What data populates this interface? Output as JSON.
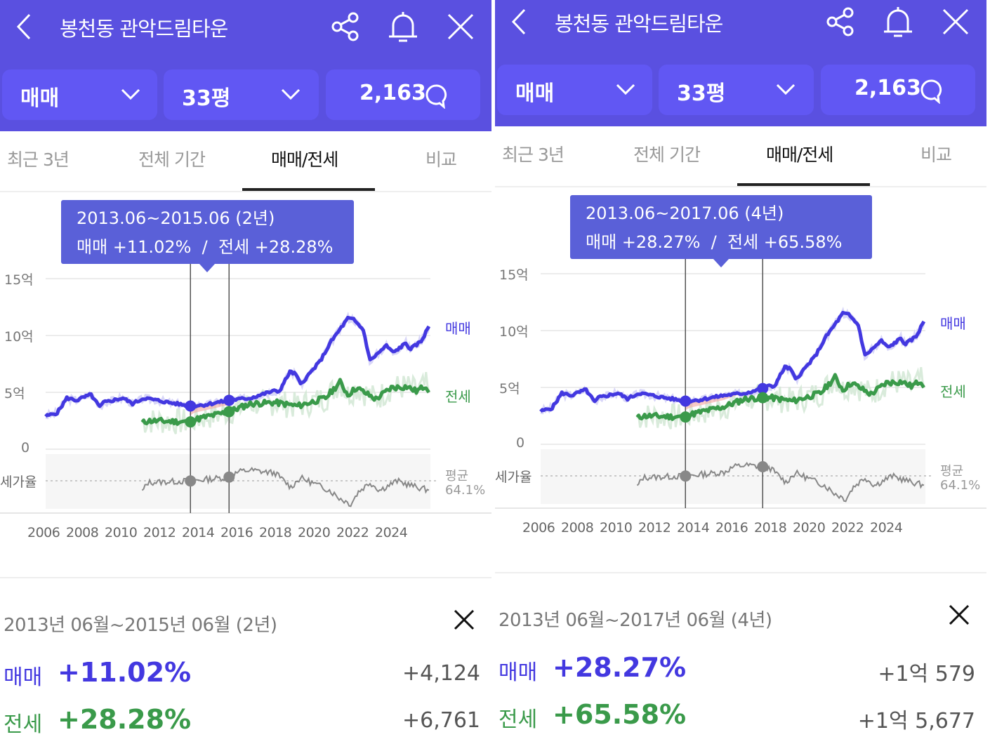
{
  "colors": {
    "header": "#5A50E0",
    "accent": "#4A3FE0",
    "sale": "#4338E0",
    "jeonse": "#3A9A4A",
    "ratio": "#888888",
    "highlight": "#F4A6A0"
  },
  "panels": [
    {
      "header": {
        "title": "봉천동 관악드림타운",
        "back_icon": "chevron-left-icon",
        "share_icon": "share-icon",
        "bell_icon": "bell-icon",
        "close_icon": "close-icon"
      },
      "filters": {
        "type": "매매",
        "size": "33평",
        "comments": "2,163"
      },
      "tabs": [
        "최근 3년",
        "전체 기간",
        "매매/전세",
        "비교"
      ],
      "active_tab": 2,
      "tooltip": {
        "range": "2013.06~2015.06 (2년)",
        "summary": "매매 +11.02%  /  전세 +28.28%"
      },
      "y_ticks": [
        "15억",
        "10억",
        "5억",
        "0"
      ],
      "ratio_label": "세가율",
      "avg_label": "평균",
      "avg_value": "64.1%",
      "series_labels": [
        "매매",
        "전세"
      ],
      "x_ticks": [
        "2006",
        "2008",
        "2010",
        "2012",
        "2014",
        "2016",
        "2018",
        "2020",
        "2022",
        "2024"
      ],
      "summary": {
        "range": "2013년 06월~2015년 06월 (2년)",
        "sale_label": "매매",
        "sale_pct": "+11.02%",
        "sale_amt": "+4,124",
        "jeonse_label": "전세",
        "jeonse_pct": "+28.28%",
        "jeonse_amt": "+6,761"
      }
    },
    {
      "header": {
        "title": "봉천동 관악드림타운",
        "back_icon": "chevron-left-icon",
        "share_icon": "share-icon",
        "bell_icon": "bell-icon",
        "close_icon": "close-icon"
      },
      "filters": {
        "type": "매매",
        "size": "33평",
        "comments": "2,163"
      },
      "tabs": [
        "최근 3년",
        "전체 기간",
        "매매/전세",
        "비교"
      ],
      "active_tab": 2,
      "tooltip": {
        "range": "2013.06~2017.06 (4년)",
        "summary": "매매 +28.27%  /  전세 +65.58%"
      },
      "y_ticks": [
        "15억",
        "10억",
        "5억",
        "0"
      ],
      "ratio_label": "세가율",
      "avg_label": "평균",
      "avg_value": "64.1%",
      "series_labels": [
        "매매",
        "전세"
      ],
      "x_ticks": [
        "2006",
        "2008",
        "2010",
        "2012",
        "2014",
        "2016",
        "2018",
        "2020",
        "2022",
        "2024"
      ],
      "summary": {
        "range": "2013년 06월~2017년 06월 (4년)",
        "sale_label": "매매",
        "sale_pct": "+28.27%",
        "sale_amt": "+1억 579",
        "jeonse_label": "전세",
        "jeonse_pct": "+65.58%",
        "jeonse_amt": "+1억 5,677"
      }
    }
  ],
  "chart_data": [
    {
      "type": "line",
      "title": "",
      "xlabel": "",
      "ylabel": "억",
      "ylim": [
        0,
        15
      ],
      "xlim": [
        2006,
        2026
      ],
      "selection": [
        2013.5,
        2015.5
      ],
      "series": [
        {
          "name": "매매",
          "points": [
            [
              2006,
              2.9
            ],
            [
              2006.6,
              3.2
            ],
            [
              2007.1,
              4.5
            ],
            [
              2007.6,
              4.3
            ],
            [
              2008.35,
              4.8
            ],
            [
              2008.8,
              3.7
            ],
            [
              2009,
              4.1
            ],
            [
              2010,
              4.5
            ],
            [
              2010.5,
              4.0
            ],
            [
              2011.1,
              4.5
            ],
            [
              2012.4,
              4.1
            ],
            [
              2013.5,
              3.8
            ],
            [
              2014.2,
              3.9
            ],
            [
              2015.5,
              4.3
            ],
            [
              2016.6,
              4.5
            ],
            [
              2017.75,
              5.1
            ],
            [
              2018.1,
              5.1
            ],
            [
              2018.65,
              6.8
            ],
            [
              2018.95,
              6.6
            ],
            [
              2019.2,
              5.7
            ],
            [
              2020.2,
              7.7
            ],
            [
              2020.8,
              9.5
            ],
            [
              2021.65,
              11.5
            ],
            [
              2021.95,
              11.4
            ],
            [
              2022.45,
              10.5
            ],
            [
              2022.8,
              7.8
            ],
            [
              2023.65,
              9.1
            ],
            [
              2024,
              8.5
            ],
            [
              2024.65,
              9.3
            ],
            [
              2024.9,
              8.8
            ],
            [
              2025.45,
              9.5
            ],
            [
              2025.85,
              10.8
            ]
          ]
        },
        {
          "name": "전세",
          "points": [
            [
              2011,
              2.3
            ],
            [
              2011.3,
              2.5
            ],
            [
              2013.5,
              2.4
            ],
            [
              2013.7,
              2.6
            ],
            [
              2015.5,
              3.3
            ],
            [
              2016.6,
              4.0
            ],
            [
              2017.9,
              4.1
            ],
            [
              2019.05,
              3.8
            ],
            [
              2020.5,
              4.5
            ],
            [
              2021.25,
              5.9
            ],
            [
              2021.65,
              4.8
            ],
            [
              2022.1,
              5.4
            ],
            [
              2023.1,
              4.4
            ],
            [
              2023.9,
              5.4
            ],
            [
              2024.7,
              5.5
            ],
            [
              2025.2,
              5.1
            ],
            [
              2025.7,
              5.6
            ],
            [
              2025.85,
              5.0
            ]
          ]
        },
        {
          "name": "세가율",
          "unit": "%",
          "average": 64.1,
          "points": [
            [
              2011,
              57
            ],
            [
              2011.3,
              63
            ],
            [
              2013.5,
              64
            ],
            [
              2015.5,
              66.5
            ],
            [
              2016,
              70
            ],
            [
              2016.6,
              71
            ],
            [
              2017.9,
              69
            ],
            [
              2018.7,
              60
            ],
            [
              2019.2,
              66
            ],
            [
              2020.7,
              58
            ],
            [
              2021.2,
              53
            ],
            [
              2021.8,
              49
            ],
            [
              2022.2,
              57
            ],
            [
              2022.8,
              63
            ],
            [
              2023.3,
              58
            ],
            [
              2024.2,
              64
            ],
            [
              2025.2,
              60
            ],
            [
              2025.85,
              58
            ]
          ]
        }
      ]
    },
    {
      "type": "line",
      "title": "",
      "xlabel": "",
      "ylabel": "억",
      "ylim": [
        0,
        15
      ],
      "xlim": [
        2006,
        2026
      ],
      "selection": [
        2013.5,
        2017.5
      ],
      "series": [
        {
          "name": "매매",
          "points": [
            [
              2006,
              2.9
            ],
            [
              2006.6,
              3.2
            ],
            [
              2007.1,
              4.5
            ],
            [
              2007.6,
              4.3
            ],
            [
              2008.35,
              4.8
            ],
            [
              2008.8,
              3.7
            ],
            [
              2009,
              4.1
            ],
            [
              2010,
              4.5
            ],
            [
              2010.5,
              4.0
            ],
            [
              2011.1,
              4.5
            ],
            [
              2012.4,
              4.1
            ],
            [
              2013.5,
              3.8
            ],
            [
              2014.2,
              3.9
            ],
            [
              2015.5,
              4.3
            ],
            [
              2016.6,
              4.5
            ],
            [
              2017.5,
              4.9
            ],
            [
              2017.75,
              5.1
            ],
            [
              2018.1,
              5.1
            ],
            [
              2018.65,
              6.8
            ],
            [
              2018.95,
              6.6
            ],
            [
              2019.2,
              5.7
            ],
            [
              2020.2,
              7.7
            ],
            [
              2020.8,
              9.5
            ],
            [
              2021.65,
              11.5
            ],
            [
              2021.95,
              11.4
            ],
            [
              2022.45,
              10.5
            ],
            [
              2022.8,
              7.8
            ],
            [
              2023.65,
              9.1
            ],
            [
              2024,
              8.5
            ],
            [
              2024.65,
              9.3
            ],
            [
              2024.9,
              8.8
            ],
            [
              2025.45,
              9.5
            ],
            [
              2025.85,
              10.8
            ]
          ]
        },
        {
          "name": "전세",
          "points": [
            [
              2011,
              2.3
            ],
            [
              2011.3,
              2.5
            ],
            [
              2013.5,
              2.4
            ],
            [
              2013.7,
              2.6
            ],
            [
              2015.5,
              3.3
            ],
            [
              2016.6,
              4.0
            ],
            [
              2017.5,
              4.1
            ],
            [
              2017.9,
              4.1
            ],
            [
              2019.05,
              3.8
            ],
            [
              2020.5,
              4.5
            ],
            [
              2021.25,
              5.9
            ],
            [
              2021.65,
              4.8
            ],
            [
              2022.1,
              5.4
            ],
            [
              2023.1,
              4.4
            ],
            [
              2023.9,
              5.4
            ],
            [
              2024.7,
              5.5
            ],
            [
              2025.2,
              5.1
            ],
            [
              2025.7,
              5.6
            ],
            [
              2025.85,
              5.0
            ]
          ]
        },
        {
          "name": "세가율",
          "unit": "%",
          "average": 64.1,
          "points": [
            [
              2011,
              57
            ],
            [
              2011.3,
              63
            ],
            [
              2013.5,
              64
            ],
            [
              2015.5,
              66.5
            ],
            [
              2016,
              70
            ],
            [
              2016.6,
              71
            ],
            [
              2017.5,
              70
            ],
            [
              2017.9,
              69
            ],
            [
              2018.7,
              60
            ],
            [
              2019.2,
              66
            ],
            [
              2020.7,
              58
            ],
            [
              2021.2,
              53
            ],
            [
              2021.8,
              49
            ],
            [
              2022.2,
              57
            ],
            [
              2022.8,
              63
            ],
            [
              2023.3,
              58
            ],
            [
              2024.2,
              64
            ],
            [
              2025.2,
              60
            ],
            [
              2025.85,
              58
            ]
          ]
        }
      ]
    }
  ]
}
